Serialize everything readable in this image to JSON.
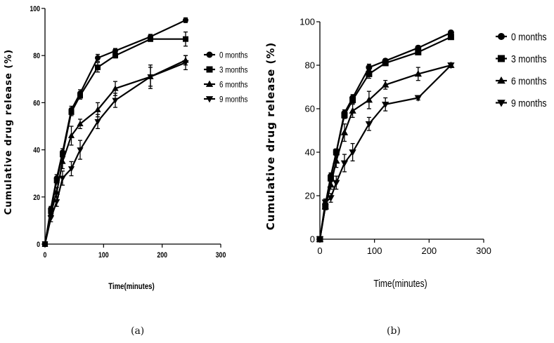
{
  "captions": [
    "(a)",
    "(b)"
  ],
  "chart_data": [
    {
      "type": "line",
      "panel": "(a)",
      "xlabel": "Time(minutes)",
      "ylabel": "Cumulative drug release (%)",
      "xlim": [
        0,
        300
      ],
      "ylim": [
        0,
        100
      ],
      "xticks": [
        0,
        100,
        200,
        300
      ],
      "yticks": [
        0,
        20,
        40,
        60,
        80,
        100
      ],
      "grid": false,
      "legend_position": "right",
      "x": [
        0,
        10,
        20,
        30,
        45,
        60,
        90,
        120,
        180,
        240
      ],
      "series": [
        {
          "name": "0 months",
          "marker": "circle",
          "values": [
            0,
            15,
            28,
            39,
            57,
            64,
            79,
            82,
            88,
            95
          ],
          "errors": [
            0,
            1,
            1.5,
            1.5,
            1.5,
            1.5,
            1.5,
            1,
            1,
            1
          ]
        },
        {
          "name": "3 months",
          "marker": "square",
          "values": [
            0,
            14,
            27,
            38,
            56,
            63,
            75,
            80,
            87,
            87
          ],
          "errors": [
            0,
            1,
            1.5,
            1.5,
            1.5,
            1.5,
            2,
            1,
            1,
            3
          ]
        },
        {
          "name": "6 months",
          "marker": "triangle-up",
          "values": [
            0,
            13,
            22,
            35,
            46,
            51,
            57,
            66,
            71,
            78
          ],
          "errors": [
            0,
            1.5,
            2,
            3,
            4,
            2,
            3,
            3,
            5,
            2
          ]
        },
        {
          "name": "9 months",
          "marker": "triangle-down",
          "values": [
            0,
            11,
            18,
            28,
            32,
            40,
            52,
            61,
            71,
            77
          ],
          "errors": [
            0,
            1.5,
            2,
            3,
            3,
            4,
            3,
            3,
            4,
            3
          ]
        }
      ]
    },
    {
      "type": "line",
      "panel": "(b)",
      "xlabel": "Time(minutes)",
      "ylabel": "Cumulative drug release (%)",
      "xlim": [
        0,
        300
      ],
      "ylim": [
        0,
        100
      ],
      "xticks": [
        0,
        100,
        200,
        300
      ],
      "yticks": [
        0,
        20,
        40,
        60,
        80,
        100
      ],
      "grid": false,
      "legend_position": "right",
      "x": [
        0,
        10,
        20,
        30,
        45,
        60,
        90,
        120,
        180,
        240
      ],
      "series": [
        {
          "name": "0 months",
          "marker": "circle",
          "values": [
            0,
            16,
            29,
            40,
            58,
            65,
            79,
            82,
            88,
            95
          ],
          "errors": [
            0,
            1,
            1.5,
            1.5,
            1.5,
            1.5,
            1.5,
            1,
            1,
            1
          ]
        },
        {
          "name": "3 months",
          "marker": "square",
          "values": [
            0,
            15,
            28,
            40,
            57,
            64,
            76,
            81,
            86,
            93
          ],
          "errors": [
            0,
            1,
            1.5,
            1.5,
            1.5,
            1.5,
            2,
            1,
            1,
            1
          ]
        },
        {
          "name": "6 months",
          "marker": "triangle-up",
          "values": [
            0,
            15,
            25,
            36,
            49,
            59,
            64,
            71,
            76,
            80
          ],
          "errors": [
            0,
            1.5,
            2,
            3,
            4,
            3,
            4,
            2,
            3,
            1
          ]
        },
        {
          "name": "9 months",
          "marker": "triangle-down",
          "values": [
            0,
            17,
            19,
            26,
            35,
            40,
            53,
            62,
            65,
            80
          ],
          "errors": [
            0,
            1.5,
            2,
            3,
            4,
            4,
            3,
            3,
            1,
            1
          ]
        }
      ]
    }
  ]
}
